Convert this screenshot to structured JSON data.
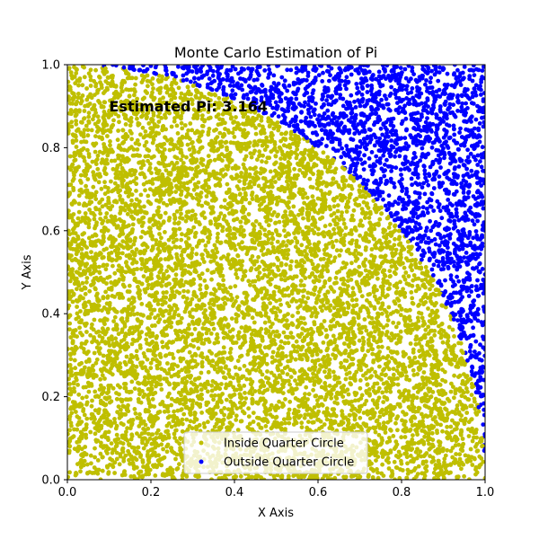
{
  "chart_data": {
    "type": "scatter",
    "title": "Monte Carlo Estimation of Pi",
    "xlabel": "X Axis",
    "ylabel": "Y Axis",
    "xlim": [
      0,
      1
    ],
    "ylim": [
      0,
      1
    ],
    "xticks": [
      "0.0",
      "0.2",
      "0.4",
      "0.6",
      "0.8",
      "1.0"
    ],
    "yticks": [
      "0.0",
      "0.2",
      "0.4",
      "0.6",
      "0.8",
      "1.0"
    ],
    "grid": false,
    "legend_position": "bottom-center",
    "annotation": {
      "text": "Estimated Pi: 3.164",
      "x": 0.1,
      "y": 0.9
    },
    "series": [
      {
        "name": "Inside Quarter Circle",
        "color": "#bfbf00",
        "region": "x^2 + y^2 <= 1"
      },
      {
        "name": "Outside Quarter Circle",
        "color": "#0000ff",
        "region": "x^2 + y^2 > 1"
      }
    ],
    "sampling": {
      "distribution": "uniform",
      "domain": [
        [
          0,
          1
        ],
        [
          0,
          1
        ]
      ],
      "estimate": 3.164
    }
  }
}
